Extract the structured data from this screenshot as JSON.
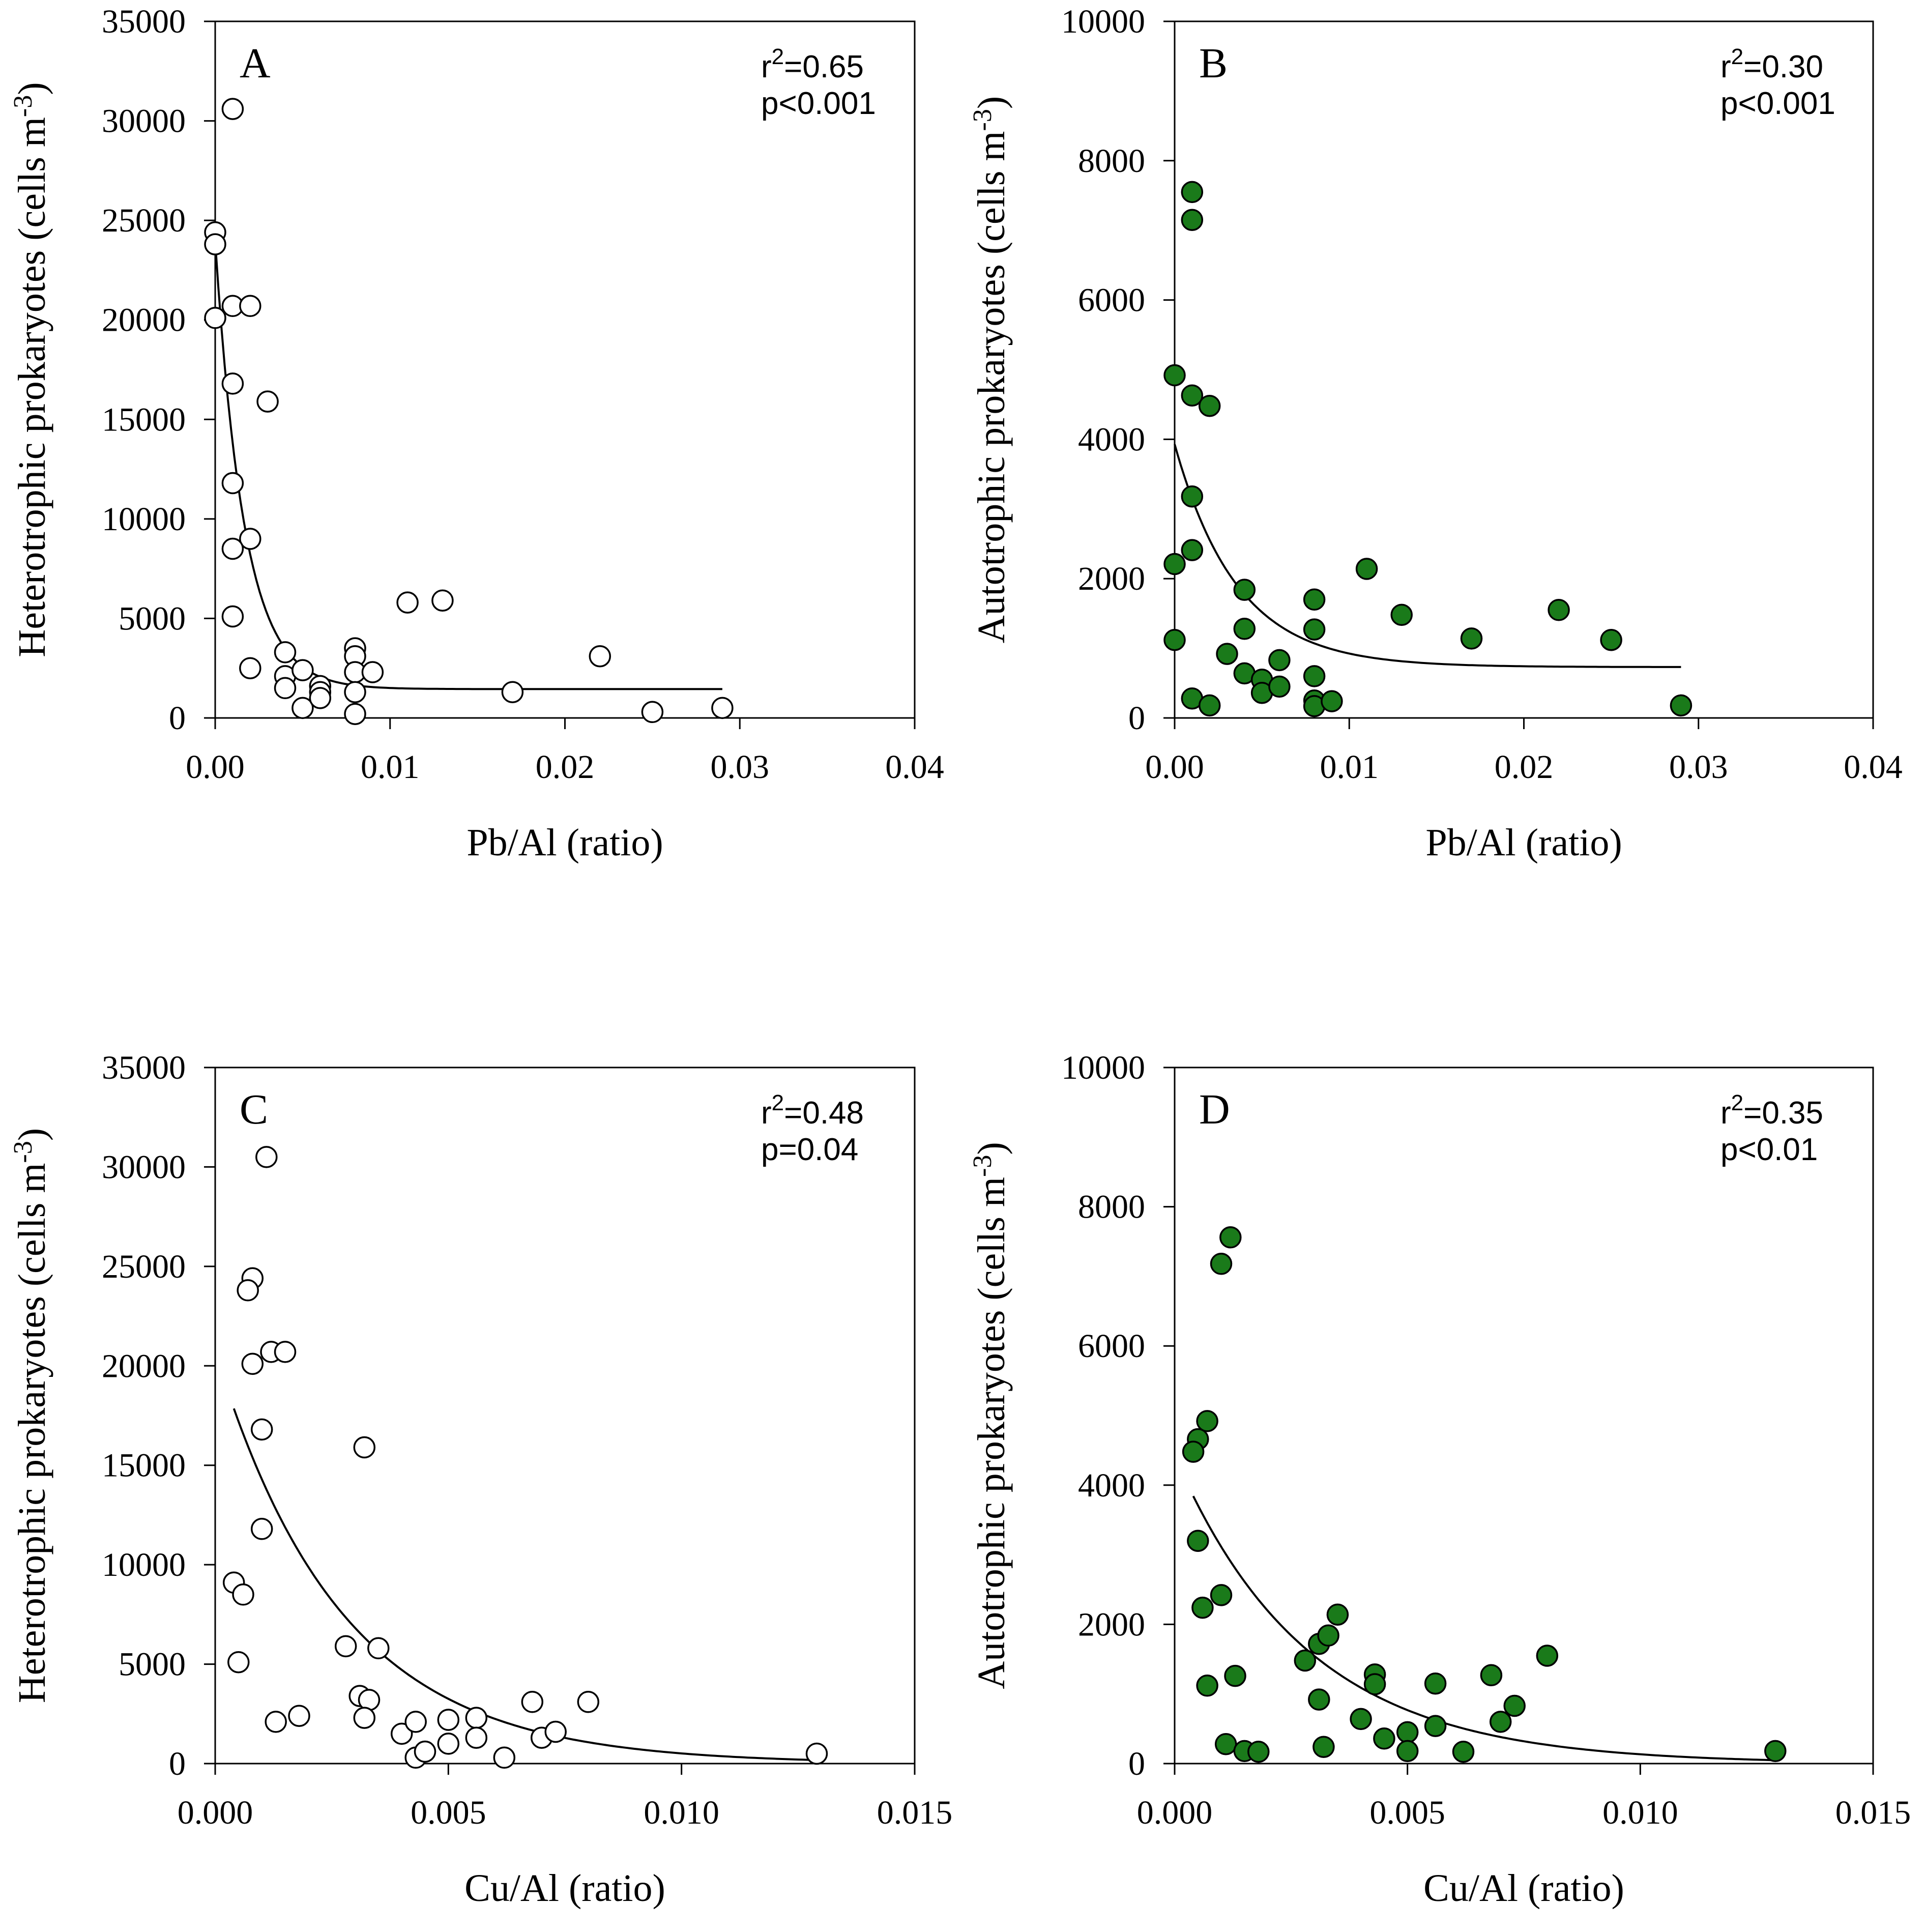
{
  "figure": {
    "colors": {
      "open_marker_fill": "#ffffff",
      "filled_marker_fill": "#1a7a1a",
      "line": "#000000"
    }
  },
  "chart_data": [
    {
      "panel": "A",
      "type": "scatter",
      "xlabel": "Pb/Al (ratio)",
      "ylabel_main": "Heterotrophic prokaryotes (cells m",
      "ylabel_sup": "-3",
      "ylabel_close": ")",
      "xlim": [
        0,
        0.04
      ],
      "ylim": [
        0,
        35000
      ],
      "xticks": [
        0,
        0.01,
        0.02,
        0.03,
        0.04
      ],
      "xtick_labels": [
        "0.00",
        "0.01",
        "0.02",
        "0.03",
        "0.04"
      ],
      "yticks": [
        0,
        5000,
        10000,
        15000,
        20000,
        25000,
        30000,
        35000
      ],
      "ytick_labels": [
        "0",
        "5000",
        "10000",
        "15000",
        "20000",
        "25000",
        "30000",
        "35000"
      ],
      "marker": "open",
      "stat_r_prefix": "r",
      "stat_r_sup": "2",
      "stat_r_value": "=0.65",
      "stat_p": "p<0.001",
      "points": [
        [
          0.0,
          24400
        ],
        [
          0.0,
          23800
        ],
        [
          0.0,
          20100
        ],
        [
          0.001,
          30600
        ],
        [
          0.001,
          20700
        ],
        [
          0.002,
          20700
        ],
        [
          0.001,
          16800
        ],
        [
          0.003,
          15900
        ],
        [
          0.001,
          11800
        ],
        [
          0.002,
          9000
        ],
        [
          0.001,
          8500
        ],
        [
          0.001,
          5100
        ],
        [
          0.002,
          2500
        ],
        [
          0.004,
          3300
        ],
        [
          0.004,
          2100
        ],
        [
          0.004,
          1500
        ],
        [
          0.005,
          2400
        ],
        [
          0.005,
          500
        ],
        [
          0.006,
          1600
        ],
        [
          0.006,
          1300
        ],
        [
          0.006,
          1000
        ],
        [
          0.008,
          3500
        ],
        [
          0.008,
          3100
        ],
        [
          0.008,
          2300
        ],
        [
          0.008,
          1300
        ],
        [
          0.008,
          200
        ],
        [
          0.009,
          2300
        ],
        [
          0.011,
          5800
        ],
        [
          0.013,
          5900
        ],
        [
          0.017,
          1300
        ],
        [
          0.022,
          3100
        ],
        [
          0.025,
          300
        ],
        [
          0.029,
          500
        ]
      ],
      "fit": {
        "model": "exponential_decay",
        "y0": 1450,
        "a": 22500,
        "k": 600,
        "x_range": [
          0,
          0.029
        ]
      }
    },
    {
      "panel": "B",
      "type": "scatter",
      "xlabel": "Pb/Al (ratio)",
      "ylabel_main": "Autotrophic prokaryotes (cells m",
      "ylabel_sup": "-3",
      "ylabel_close": ")",
      "xlim": [
        0,
        0.04
      ],
      "ylim": [
        0,
        10000
      ],
      "xticks": [
        0,
        0.01,
        0.02,
        0.03,
        0.04
      ],
      "xtick_labels": [
        "0.00",
        "0.01",
        "0.02",
        "0.03",
        "0.04"
      ],
      "yticks": [
        0,
        2000,
        4000,
        6000,
        8000,
        10000
      ],
      "ytick_labels": [
        "0",
        "2000",
        "4000",
        "6000",
        "8000",
        "10000"
      ],
      "marker": "filled",
      "stat_r_prefix": "r",
      "stat_r_sup": "2",
      "stat_r_value": "=0.30",
      "stat_p": "p<0.001",
      "points": [
        [
          0.001,
          7550
        ],
        [
          0.001,
          7150
        ],
        [
          0.0,
          4920
        ],
        [
          0.001,
          4630
        ],
        [
          0.002,
          4480
        ],
        [
          0.001,
          3180
        ],
        [
          0.001,
          2410
        ],
        [
          0.0,
          2210
        ],
        [
          0.0,
          1120
        ],
        [
          0.001,
          280
        ],
        [
          0.002,
          180
        ],
        [
          0.003,
          920
        ],
        [
          0.004,
          1840
        ],
        [
          0.004,
          1280
        ],
        [
          0.004,
          640
        ],
        [
          0.005,
          550
        ],
        [
          0.005,
          360
        ],
        [
          0.006,
          830
        ],
        [
          0.006,
          450
        ],
        [
          0.008,
          1700
        ],
        [
          0.008,
          1270
        ],
        [
          0.008,
          600
        ],
        [
          0.008,
          250
        ],
        [
          0.008,
          170
        ],
        [
          0.009,
          240
        ],
        [
          0.011,
          2140
        ],
        [
          0.013,
          1480
        ],
        [
          0.017,
          1140
        ],
        [
          0.022,
          1550
        ],
        [
          0.025,
          1120
        ],
        [
          0.029,
          180
        ]
      ],
      "fit": {
        "model": "exponential_decay",
        "y0": 730,
        "a": 3200,
        "k": 280,
        "x_range": [
          0,
          0.029
        ]
      }
    },
    {
      "panel": "C",
      "type": "scatter",
      "xlabel": "Cu/Al (ratio)",
      "ylabel_main": "Heterotrophic prokaryotes (cells m",
      "ylabel_sup": "-3",
      "ylabel_close": ")",
      "xlim": [
        0,
        0.015
      ],
      "ylim": [
        0,
        35000
      ],
      "xticks": [
        0,
        0.005,
        0.01,
        0.015
      ],
      "xtick_labels": [
        "0.000",
        "0.005",
        "0.010",
        "0.015"
      ],
      "yticks": [
        0,
        5000,
        10000,
        15000,
        20000,
        25000,
        30000,
        35000
      ],
      "ytick_labels": [
        "0",
        "5000",
        "10000",
        "15000",
        "20000",
        "25000",
        "30000",
        "35000"
      ],
      "marker": "open",
      "stat_r_prefix": "r",
      "stat_r_sup": "2",
      "stat_r_value": "=0.48",
      "stat_p": "p=0.04",
      "points": [
        [
          0.0011,
          30500
        ],
        [
          0.0008,
          24400
        ],
        [
          0.0007,
          23800
        ],
        [
          0.0008,
          20100
        ],
        [
          0.0012,
          20700
        ],
        [
          0.0015,
          20700
        ],
        [
          0.001,
          16800
        ],
        [
          0.0032,
          15900
        ],
        [
          0.001,
          11800
        ],
        [
          0.0004,
          9100
        ],
        [
          0.0006,
          8500
        ],
        [
          0.0005,
          5100
        ],
        [
          0.0028,
          5900
        ],
        [
          0.0035,
          5800
        ],
        [
          0.0013,
          2100
        ],
        [
          0.0018,
          2400
        ],
        [
          0.0031,
          3400
        ],
        [
          0.0033,
          3200
        ],
        [
          0.0032,
          2300
        ],
        [
          0.004,
          1500
        ],
        [
          0.0043,
          2100
        ],
        [
          0.0043,
          300
        ],
        [
          0.0045,
          600
        ],
        [
          0.005,
          2200
        ],
        [
          0.005,
          1000
        ],
        [
          0.0056,
          2300
        ],
        [
          0.0056,
          1300
        ],
        [
          0.0062,
          300
        ],
        [
          0.0068,
          3100
        ],
        [
          0.007,
          1300
        ],
        [
          0.0073,
          1600
        ],
        [
          0.008,
          3100
        ],
        [
          0.0129,
          500
        ]
      ],
      "fit": {
        "model": "exponential_decay",
        "y0": 0,
        "a": 20700,
        "k": 370,
        "x_range": [
          0.0004,
          0.0129
        ]
      }
    },
    {
      "panel": "D",
      "type": "scatter",
      "xlabel": "Cu/Al (ratio)",
      "ylabel_main": "Autotrophic prokaryotes (cells m",
      "ylabel_sup": "-3",
      "ylabel_close": ")",
      "xlim": [
        0,
        0.015
      ],
      "ylim": [
        0,
        10000
      ],
      "xticks": [
        0,
        0.005,
        0.01,
        0.015
      ],
      "xtick_labels": [
        "0.000",
        "0.005",
        "0.010",
        "0.015"
      ],
      "yticks": [
        0,
        2000,
        4000,
        6000,
        8000,
        10000
      ],
      "ytick_labels": [
        "0",
        "2000",
        "4000",
        "6000",
        "8000",
        "10000"
      ],
      "marker": "filled",
      "stat_r_prefix": "r",
      "stat_r_sup": "2",
      "stat_r_value": "=0.35",
      "stat_p": "p<0.01",
      "points": [
        [
          0.0012,
          7560
        ],
        [
          0.001,
          7180
        ],
        [
          0.0007,
          4920
        ],
        [
          0.0005,
          4660
        ],
        [
          0.0004,
          4480
        ],
        [
          0.0005,
          3200
        ],
        [
          0.001,
          2420
        ],
        [
          0.0006,
          2240
        ],
        [
          0.0007,
          1120
        ],
        [
          0.0013,
          1260
        ],
        [
          0.0011,
          280
        ],
        [
          0.0015,
          180
        ],
        [
          0.0018,
          170
        ],
        [
          0.0028,
          1480
        ],
        [
          0.0031,
          1720
        ],
        [
          0.0033,
          1840
        ],
        [
          0.0035,
          2140
        ],
        [
          0.0031,
          920
        ],
        [
          0.0032,
          240
        ],
        [
          0.004,
          640
        ],
        [
          0.0043,
          1280
        ],
        [
          0.0043,
          1140
        ],
        [
          0.0045,
          360
        ],
        [
          0.005,
          450
        ],
        [
          0.005,
          180
        ],
        [
          0.0056,
          1150
        ],
        [
          0.0056,
          540
        ],
        [
          0.0062,
          170
        ],
        [
          0.0068,
          1270
        ],
        [
          0.007,
          600
        ],
        [
          0.0073,
          830
        ],
        [
          0.008,
          1550
        ],
        [
          0.0129,
          180
        ]
      ],
      "fit": {
        "model": "exponential_decay",
        "y0": 0,
        "a": 4420,
        "k": 350,
        "x_range": [
          0.0004,
          0.0129
        ]
      }
    }
  ]
}
